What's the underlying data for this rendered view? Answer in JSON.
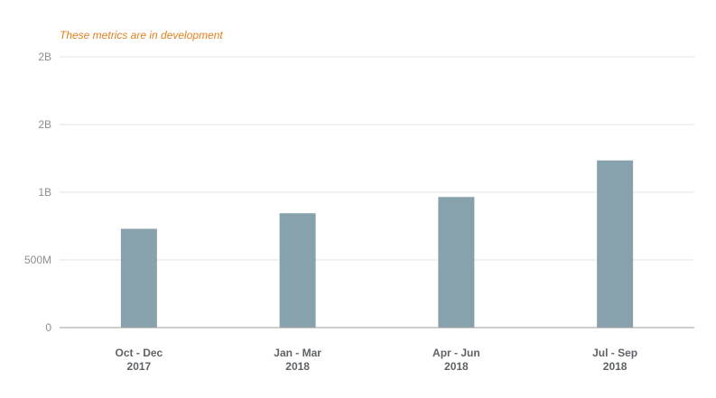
{
  "note": {
    "text": "These metrics are in development",
    "color": "#e0801f"
  },
  "chart_data": {
    "type": "bar",
    "categories": [
      [
        "Oct - Dec",
        "2017"
      ],
      [
        "Jan - Mar",
        "2018"
      ],
      [
        "Apr - Jun",
        "2018"
      ],
      [
        "Jul - Sep",
        "2018"
      ]
    ],
    "values": [
      730000000,
      845000000,
      965000000,
      1235000000
    ],
    "ylim": [
      0,
      2000000000
    ],
    "yticks": [
      {
        "value": 0,
        "label": "0"
      },
      {
        "value": 500000000,
        "label": "500M"
      },
      {
        "value": 1000000000,
        "label": "1B"
      },
      {
        "value": 1500000000,
        "label": "2B"
      },
      {
        "value": 2000000000,
        "label": "2B"
      }
    ],
    "grid": true,
    "bar_color": "#87a2ad",
    "grid_color": "#e3e3e3",
    "axis_color": "#9e9e9e"
  }
}
